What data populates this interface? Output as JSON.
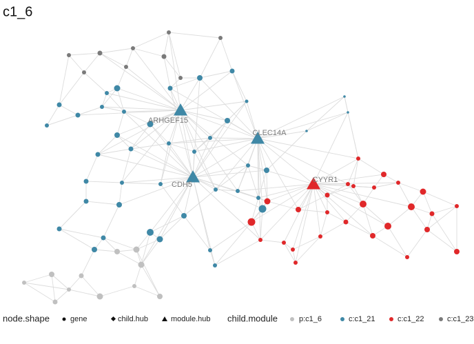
{
  "title": "c1_6",
  "hubs": [
    "ARHGEF15",
    "CLEC14A",
    "CDH5",
    "CYYR1"
  ],
  "legend": {
    "shape_title": "node.shape",
    "shapes": [
      "gene",
      "child.hub",
      "module.hub"
    ],
    "module_title": "child.module",
    "modules": [
      "p:c1_6",
      "c:c1_21",
      "c:c1_22",
      "c:c1_23"
    ]
  }
}
